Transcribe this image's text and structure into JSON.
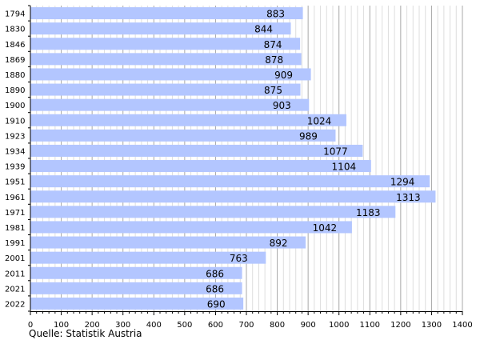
{
  "chart_data": {
    "type": "bar",
    "orientation": "horizontal",
    "categories": [
      "1794",
      "1830",
      "1846",
      "1869",
      "1880",
      "1890",
      "1900",
      "1910",
      "1923",
      "1934",
      "1939",
      "1951",
      "1961",
      "1971",
      "1981",
      "1991",
      "2001",
      "2011",
      "2021",
      "2022"
    ],
    "values": [
      883,
      844,
      874,
      878,
      909,
      875,
      903,
      1024,
      989,
      1077,
      1104,
      1294,
      1313,
      1183,
      1042,
      892,
      763,
      686,
      686,
      690
    ],
    "xticks": [
      0,
      100,
      200,
      300,
      400,
      500,
      600,
      700,
      800,
      900,
      1000,
      1100,
      1200,
      1300,
      1400
    ],
    "xlim": [
      0,
      1400
    ],
    "grid": "vertical",
    "bar_color": "#b3c6ff",
    "grid_color": "#c8c8c8",
    "title": "",
    "xlabel": "",
    "ylabel": ""
  },
  "source": "Quelle: Statistik Austria"
}
